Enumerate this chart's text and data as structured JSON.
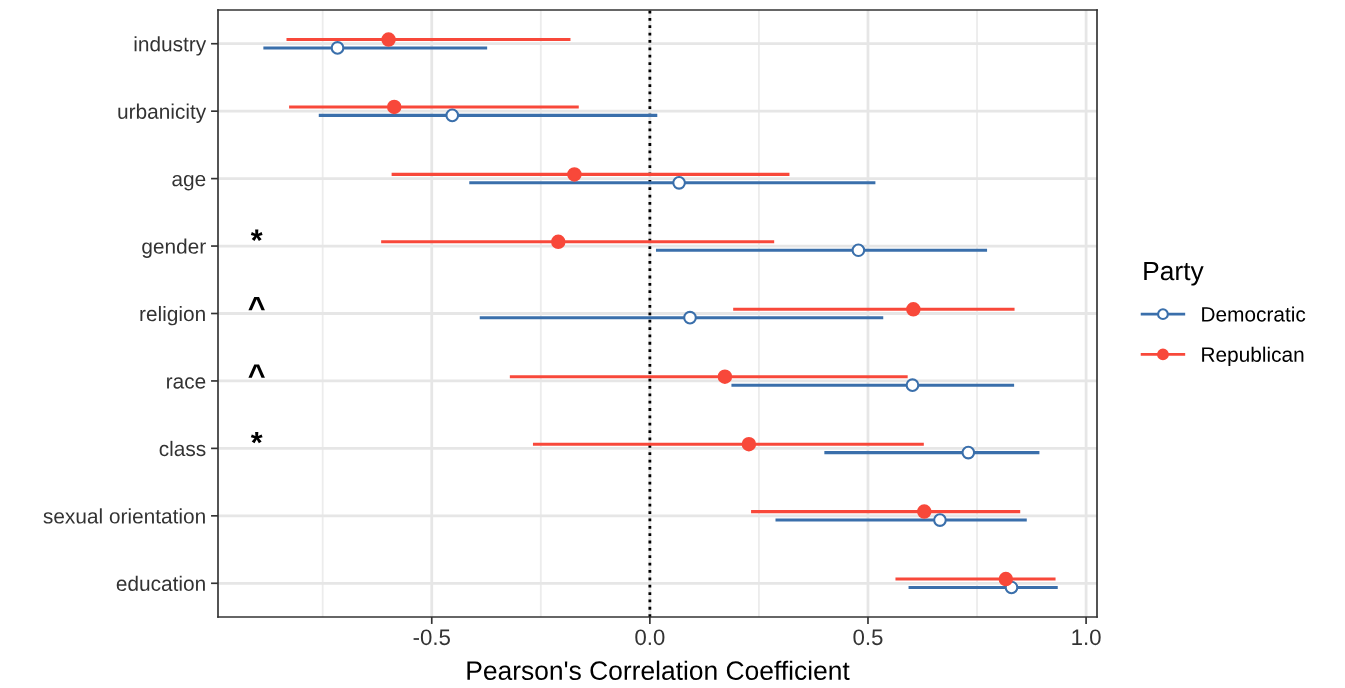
{
  "chart_data": {
    "type": "scatter",
    "orientation": "horizontal",
    "xlabel": "Pearson's Correlation Coefficient",
    "legend_title": "Party",
    "legend": "right",
    "grid": true,
    "marker": "circle",
    "categories": [
      "industry",
      "urbanicity",
      "age",
      "gender",
      "religion",
      "race",
      "class",
      "sexual orientation",
      "education"
    ],
    "xlim": [
      -0.99,
      1.025
    ],
    "xticks": [
      -0.5,
      {
        "value": 0,
        "label": "0.0"
      },
      0.5,
      {
        "value": 1,
        "label": "1.0"
      }
    ],
    "series": [
      {
        "name": "Democratic",
        "color": "#3a6fab",
        "values": [
          -0.716,
          -0.453,
          0.067,
          0.478,
          0.092,
          0.602,
          0.73,
          0.665,
          0.829
        ],
        "errors": [
          [
            -0.886,
            -0.373
          ],
          [
            -0.759,
            0.017
          ],
          [
            -0.414,
            0.517
          ],
          [
            0.014,
            0.773
          ],
          [
            -0.39,
            0.535
          ],
          [
            0.187,
            0.835
          ],
          [
            0.4,
            0.893
          ],
          [
            0.288,
            0.864
          ],
          [
            0.593,
            0.935
          ]
        ]
      },
      {
        "name": "Republican",
        "color": "#f8483a",
        "values": [
          -0.599,
          -0.586,
          -0.173,
          -0.21,
          0.604,
          0.172,
          0.227,
          0.629,
          0.816
        ],
        "errors": [
          [
            -0.833,
            -0.182
          ],
          [
            -0.827,
            -0.163
          ],
          [
            -0.592,
            0.32
          ],
          [
            -0.616,
            0.285
          ],
          [
            0.191,
            0.836
          ],
          [
            -0.321,
            0.591
          ],
          [
            -0.268,
            0.628
          ],
          [
            0.232,
            0.849
          ],
          [
            0.563,
            0.93
          ]
        ]
      }
    ],
    "ref_lines": [
      {
        "axis": "x",
        "value": 0,
        "color": "#000000",
        "line_style": "dotted"
      }
    ],
    "annotations": [
      "*",
      "^",
      "^",
      "*"
    ]
  }
}
